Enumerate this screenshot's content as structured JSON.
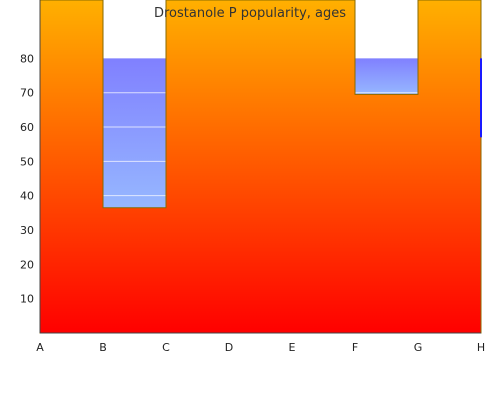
{
  "chart_data": {
    "type": "area",
    "title": "Drostanole P popularity, ages",
    "xlabel": "",
    "ylabel": "",
    "categories": [
      "A",
      "B",
      "C",
      "D",
      "E",
      "F",
      "G",
      "H"
    ],
    "yticks": [
      10,
      20,
      30,
      40,
      50,
      60,
      70,
      80
    ],
    "ylim": [
      0,
      97
    ],
    "grid": false,
    "legend": "none",
    "series": [
      {
        "values": [
          97,
          36.5,
          97,
          97,
          97,
          69.5,
          97,
          97
        ],
        "fill_gradient": [
          "#ff0000",
          "#ffb000"
        ],
        "outline_color": "#8a6a00"
      }
    ],
    "background_bands": [
      {
        "from_category": "B",
        "to_category": "C",
        "top": 80,
        "bottom": 36.5,
        "gradient": [
          "#96b7ff",
          "#8080ff"
        ],
        "band_lines": [
          40,
          50,
          60,
          70
        ]
      },
      {
        "from_category": "F",
        "to_category": "G",
        "top": 80,
        "bottom": 69.5,
        "gradient": [
          "#96b7ff",
          "#8080ff"
        ],
        "band_lines": [
          70
        ]
      }
    ],
    "right_axis_color": "#1a1aff"
  }
}
